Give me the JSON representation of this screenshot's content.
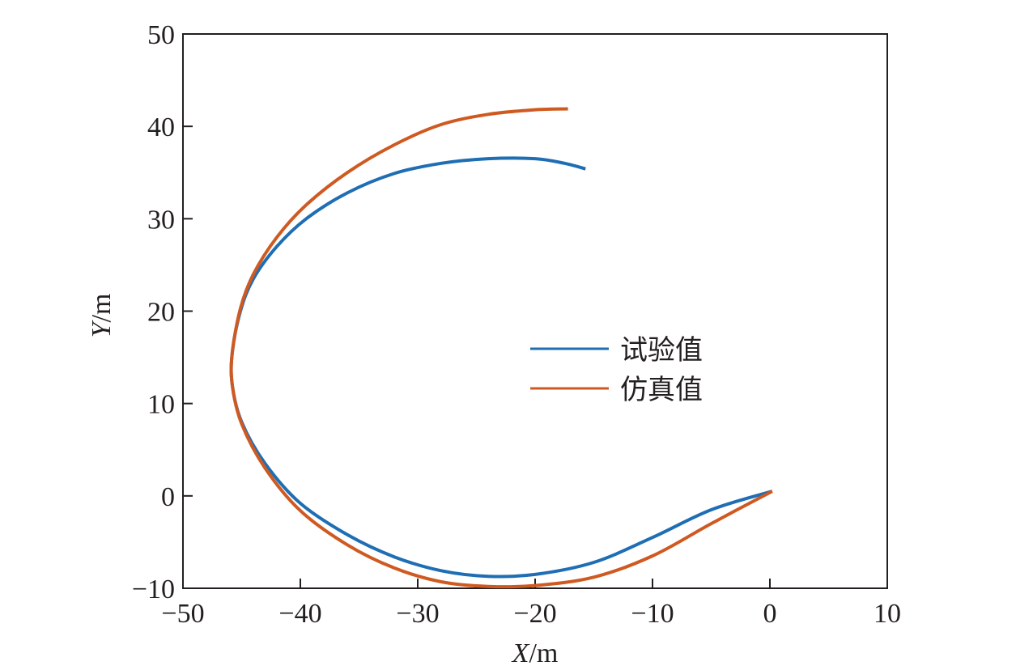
{
  "chart_data": {
    "type": "line",
    "xlabel_var": "X",
    "xlabel_unit": "/m",
    "ylabel_var": "Y",
    "ylabel_unit": "/m",
    "xlim": [
      -50,
      10
    ],
    "ylim": [
      -10,
      50
    ],
    "xticks": [
      -50,
      -40,
      -30,
      -20,
      -10,
      0,
      10
    ],
    "yticks": [
      -10,
      0,
      10,
      20,
      30,
      40,
      50
    ],
    "xtick_labels": [
      "−50",
      "−40",
      "−30",
      "−20",
      "−10",
      "0",
      "10"
    ],
    "ytick_labels": [
      "−10",
      "0",
      "10",
      "20",
      "30",
      "40",
      "50"
    ],
    "grid": false,
    "legend_position": "center-right",
    "series": [
      {
        "name": "试验值",
        "color": "#1f6eb4",
        "x": [
          0.2,
          -5,
          -10,
          -15,
          -20,
          -24,
          -28,
          -32,
          -36,
          -40,
          -43,
          -45,
          -45.8,
          -45.8,
          -45.1,
          -44,
          -42,
          -39.5,
          -36,
          -32,
          -28,
          -24,
          -20,
          -17.5,
          -15.7
        ],
        "y": [
          0.5,
          -1.5,
          -4.5,
          -7.2,
          -8.5,
          -8.7,
          -8.1,
          -6.6,
          -4.2,
          -0.8,
          3.5,
          8,
          12,
          15.5,
          20,
          23.5,
          27,
          30,
          32.8,
          34.9,
          36,
          36.5,
          36.5,
          36,
          35.4
        ]
      },
      {
        "name": "仿真值",
        "color": "#cf5a21",
        "x": [
          0.2,
          -5,
          -10,
          -15,
          -20,
          -24,
          -28,
          -32,
          -36,
          -40,
          -43,
          -45,
          -45.8,
          -45.8,
          -45.1,
          -44,
          -42,
          -39.5,
          -36,
          -32,
          -28,
          -24,
          -20,
          -17.2
        ],
        "y": [
          0.5,
          -3,
          -6.5,
          -8.8,
          -9.7,
          -9.8,
          -9.3,
          -7.8,
          -5.3,
          -1.6,
          3,
          7.8,
          12,
          15.5,
          20.3,
          24,
          28,
          31.5,
          35,
          38,
          40.2,
          41.3,
          41.8,
          41.9
        ]
      }
    ]
  }
}
